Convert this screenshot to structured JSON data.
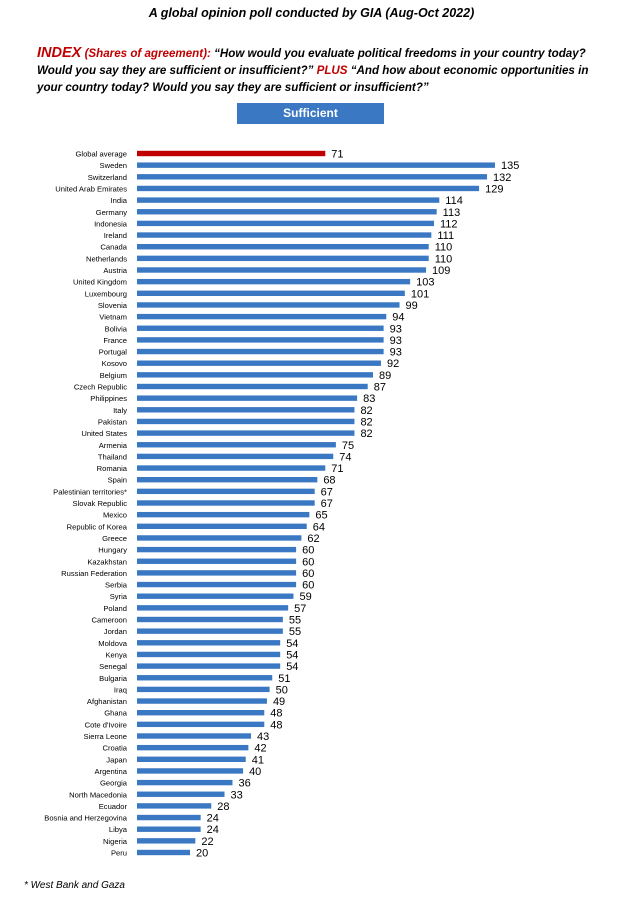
{
  "header": {
    "title": "A global opinion poll conducted by GIA (Aug-Oct 2022)",
    "index_label": "INDEX",
    "index_sub": "(Shares of agreement):",
    "question_part1": " “How would you evaluate political freedoms in your country today? Would you say they are sufficient or insufficient?” ",
    "plus_label": "PLUS",
    "question_part2": " “And how about economic opportunities in your country today?  Would you say they are sufficient or insufficient?”"
  },
  "legend": {
    "label": "Sufficient"
  },
  "footnote": "* West Bank and Gaza",
  "colors": {
    "bar": "#3a78c3",
    "highlight": "#c00000"
  },
  "chart_data": {
    "type": "bar",
    "orientation": "horizontal",
    "series_name": "Sufficient",
    "highlight_category": "Global average",
    "categories": [
      "Global average",
      "Sweden",
      "Switzerland",
      "United Arab Emirates",
      "India",
      "Germany",
      "Indonesia",
      "Ireland",
      "Canada",
      "Netherlands",
      "Austria",
      "United Kingdom",
      "Luxembourg",
      "Slovenia",
      "Vietnam",
      "Bolivia",
      "France",
      "Portugal",
      "Kosovo",
      "Belgium",
      "Czech Republic",
      "Philippines",
      "Italy",
      "Pakistan",
      "United States",
      "Armenia",
      "Thailand",
      "Romania",
      "Spain",
      "Palestinian territories*",
      "Slovak Republic",
      "Mexico",
      "Republic of Korea",
      "Greece",
      "Hungary",
      "Kazakhstan",
      "Russian Federation",
      "Serbia",
      "Syria",
      "Poland",
      "Cameroon",
      "Jordan",
      "Moldova",
      "Kenya",
      "Senegal",
      "Bulgaria",
      "Iraq",
      "Afghanistan",
      "Ghana",
      "Cote d'Ivoire",
      "Sierra Leone",
      "Croatia",
      "Japan",
      "Argentina",
      "Georgia",
      "North Macedonia",
      "Ecuador",
      "Bosnia and Herzegovina",
      "Libya",
      "Nigeria",
      "Peru"
    ],
    "values": [
      71,
      135,
      132,
      129,
      114,
      113,
      112,
      111,
      110,
      110,
      109,
      103,
      101,
      99,
      94,
      93,
      93,
      93,
      92,
      89,
      87,
      83,
      82,
      82,
      82,
      75,
      74,
      71,
      68,
      67,
      67,
      65,
      64,
      62,
      60,
      60,
      60,
      60,
      59,
      57,
      55,
      55,
      54,
      54,
      54,
      51,
      50,
      49,
      48,
      48,
      43,
      42,
      41,
      40,
      36,
      33,
      28,
      24,
      24,
      22,
      20
    ],
    "xlim": [
      0,
      135
    ]
  }
}
